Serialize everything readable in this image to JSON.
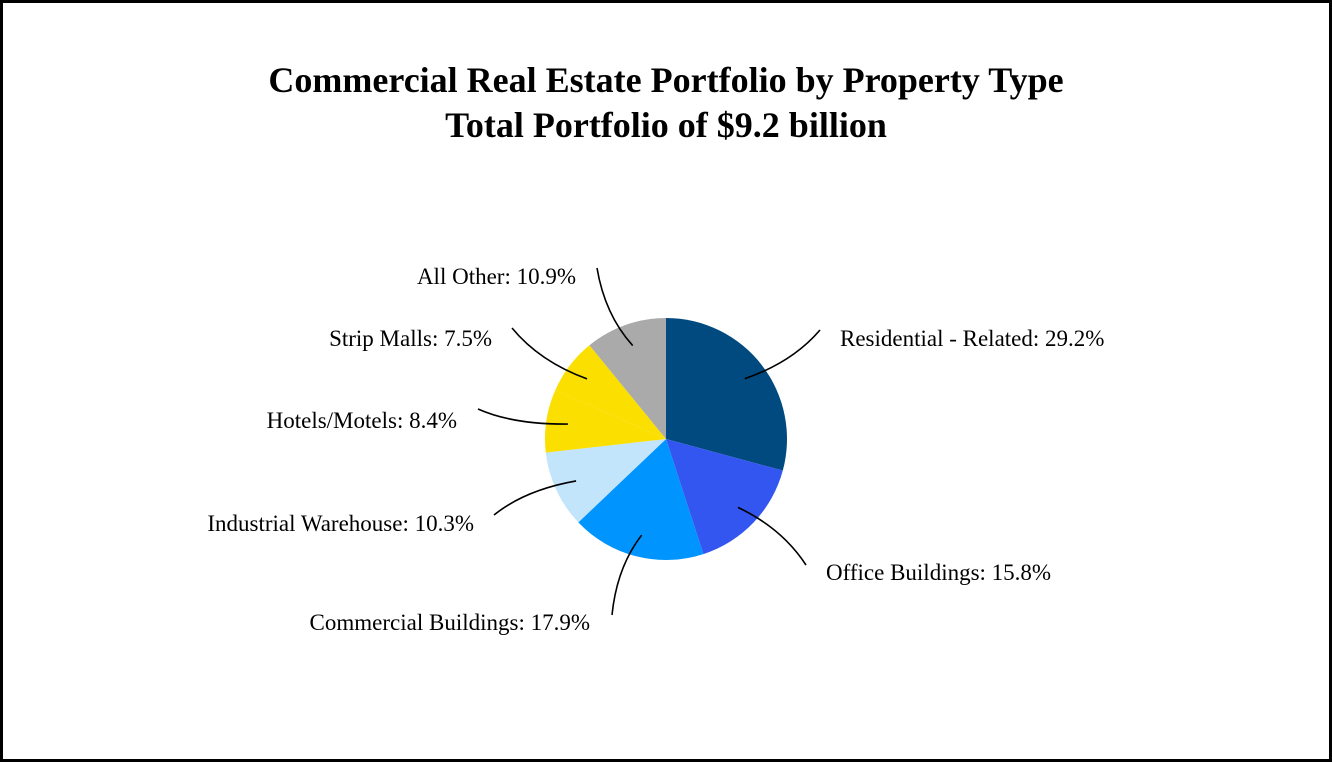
{
  "chart_data": {
    "type": "pie",
    "title": "Commercial Real Estate Portfolio by Property Type",
    "subtitle": "Total Portfolio of $9.2 billion",
    "slices": [
      {
        "label": "Residential - Related: 29.2%",
        "name": "Residential - Related",
        "value": 29.2,
        "color": "#004A7F"
      },
      {
        "label": "Office Buildings: 15.8%",
        "name": "Office Buildings",
        "value": 15.8,
        "color": "#3355F0"
      },
      {
        "label": "Commercial Buildings: 17.9%",
        "name": "Commercial Buildings",
        "value": 17.9,
        "color": "#0094FF"
      },
      {
        "label": "Industrial Warehouse: 10.3%",
        "name": "Industrial Warehouse",
        "value": 10.3,
        "color": "#C2E5FC"
      },
      {
        "label": "Hotels/Motels: 8.4%",
        "name": "Hotels/Motels",
        "value": 8.4,
        "color": "#FADF00"
      },
      {
        "label": "Strip Malls: 7.5%",
        "name": "Strip Malls",
        "value": 7.5,
        "color": "#FADF00"
      },
      {
        "label": "All Other: 10.9%",
        "name": "All Other",
        "value": 10.9,
        "color": "#AAAAAA"
      }
    ],
    "start_angle": "12 o'clock",
    "direction": "clockwise",
    "legend": "none",
    "label_style": "outside with leader lines"
  }
}
